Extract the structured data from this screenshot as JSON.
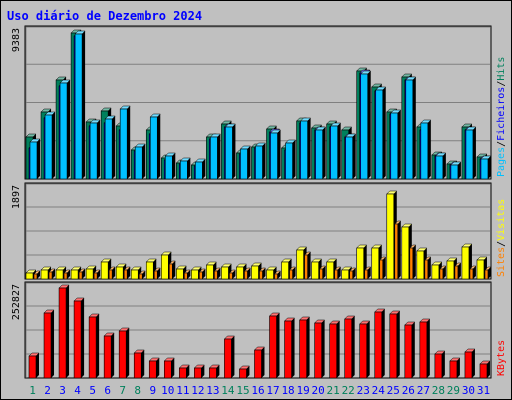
{
  "chart_data": {
    "title": "Uso diário de Dezembro 2024",
    "x": [
      "1",
      "2",
      "3",
      "4",
      "5",
      "6",
      "7",
      "8",
      "9",
      "10",
      "11",
      "12",
      "13",
      "14",
      "15",
      "16",
      "17",
      "18",
      "19",
      "20",
      "21",
      "22",
      "23",
      "24",
      "25",
      "26",
      "27",
      "28",
      "29",
      "30",
      "31"
    ],
    "weekend_days": [
      "1",
      "7",
      "8",
      "14",
      "15",
      "21",
      "22",
      "28",
      "29"
    ],
    "colors": {
      "title": "#0000ff",
      "hits": "#00805c",
      "files": "#0000ff",
      "pages": "#00c0ff",
      "visits": "#ffff00",
      "sites": "#ff8000",
      "kbytes": "#ff0000",
      "weekday_label": "#0000ff",
      "weekend_label": "#00805c"
    },
    "panels": [
      {
        "type": "bar",
        "max_label": "9383",
        "ylim": [
          0,
          9383
        ],
        "series": [
          {
            "name": "Hits",
            "key": "hits",
            "values": [
              2650,
              4300,
              6300,
              9300,
              3650,
              4350,
              3400,
              1850,
              3100,
              1320,
              1000,
              900,
              2700,
              3500,
              1640,
              2050,
              3200,
              1950,
              3700,
              3250,
              3500,
              3150,
              6900,
              5900,
              4300,
              6500,
              3300,
              1550,
              950,
              3350,
              1420
            ]
          },
          {
            "name": "Ficheiros",
            "key": "files",
            "values": [
              2000,
              3900,
              5950,
              9150,
              3400,
              3600,
              3150,
              1800,
              2900,
              1200,
              950,
              850,
              2550,
              3300,
              1600,
              1950,
              3000,
              1850,
              3550,
              3100,
              3300,
              2700,
              6750,
              5600,
              4150,
              6350,
              3150,
              1450,
              900,
              3150,
              1300
            ]
          },
          {
            "name": "Pages",
            "key": "pages",
            "values": [
              2350,
              4100,
              6150,
              9250,
              3550,
              3800,
              4500,
              2050,
              3950,
              1500,
              1150,
              1100,
              2650,
              3350,
              1900,
              2100,
              2950,
              2300,
              3700,
              3100,
              3400,
              2650,
              6700,
              5700,
              4200,
              6350,
              3600,
              1450,
              900,
              3150,
              1250
            ]
          }
        ],
        "legend": [
          "Pages",
          "/",
          "Ficheiros",
          "/",
          "Hits"
        ]
      },
      {
        "type": "bar",
        "max_label": "1897",
        "ylim": [
          0,
          1897
        ],
        "series": [
          {
            "name": "Visitas",
            "key": "visits",
            "values": [
              120,
              200,
              180,
              200,
              210,
              350,
              250,
              200,
              350,
              500,
              220,
              200,
              300,
              250,
              260,
              270,
              180,
              350,
              620,
              360,
              350,
              200,
              660,
              660,
              1800,
              1100,
              580,
              300,
              380,
              680,
              400
            ]
          },
          {
            "name": "Sites",
            "key": "sites",
            "values": [
              110,
              140,
              130,
              150,
              120,
              200,
              180,
              110,
              170,
              320,
              130,
              140,
              170,
              130,
              160,
              170,
              110,
              200,
              500,
              220,
              200,
              160,
              190,
              390,
              1150,
              650,
              390,
              210,
              270,
              210,
              180
            ]
          }
        ],
        "legend": [
          "Sites",
          "/",
          "Visitas"
        ]
      },
      {
        "type": "bar",
        "max_label": "252827",
        "ylim": [
          0,
          252827
        ],
        "series": [
          {
            "name": "KBytes",
            "key": "kbytes",
            "values": [
              63000,
              184000,
              253000,
              217000,
              172000,
              119000,
              133000,
              70000,
              48000,
              49000,
              29000,
              28000,
              28000,
              109000,
              26000,
              78000,
              175000,
              160000,
              163000,
              154000,
              153000,
              167000,
              152000,
              185000,
              179000,
              150000,
              157000,
              68000,
              47000,
              74000,
              38000
            ]
          }
        ],
        "legend": [
          "KBytes"
        ]
      }
    ]
  }
}
